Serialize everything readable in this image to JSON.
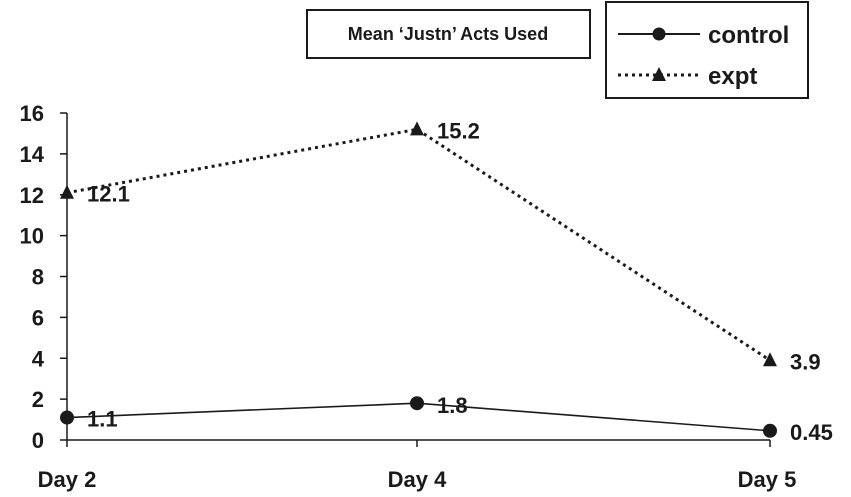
{
  "chart_data": {
    "type": "line",
    "title": "Mean ‘Justn’ Acts Used",
    "xlabel": "",
    "ylabel": "",
    "categories": [
      "Day 2",
      "Day 4",
      "Day 5"
    ],
    "ylim": [
      0,
      16
    ],
    "yticks": [
      0,
      2,
      4,
      6,
      8,
      10,
      12,
      14,
      16
    ],
    "grid": false,
    "legend_position": "top-right",
    "series": [
      {
        "name": "control",
        "values": [
          1.1,
          1.8,
          0.45
        ],
        "labels": [
          "1.1",
          "1.8",
          "0.45"
        ],
        "marker": "circle",
        "line_style": "solid",
        "color": "#1a1a1a"
      },
      {
        "name": "expt",
        "values": [
          12.1,
          15.2,
          3.9
        ],
        "labels": [
          "12.1",
          "15.2",
          "3.9"
        ],
        "marker": "triangle",
        "line_style": "dotted",
        "color": "#1a1a1a"
      }
    ]
  }
}
